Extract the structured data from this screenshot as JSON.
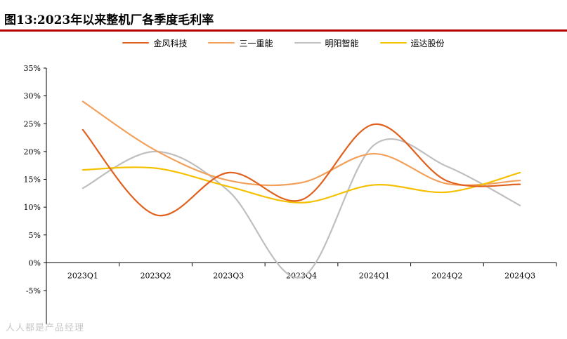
{
  "title": "图13:2023年以来整机厂各季度毛利率",
  "watermark": "人人都是产品经理",
  "chart_data": {
    "type": "line",
    "categories": [
      "2023Q1",
      "2023Q2",
      "2023Q3",
      "2023Q4",
      "2024Q1",
      "2024Q2",
      "2024Q3"
    ],
    "yticks": [
      "-5%",
      "0%",
      "5%",
      "10%",
      "15%",
      "20%",
      "25%",
      "30%",
      "35%"
    ],
    "ylim": [
      -5,
      35
    ],
    "series": [
      {
        "name": "金风科技",
        "color": "#E0611E",
        "values": [
          23.9,
          8.6,
          16.2,
          11.3,
          24.9,
          14.7,
          14.1
        ]
      },
      {
        "name": "三一重能",
        "color": "#F2A05A",
        "values": [
          29.0,
          20.2,
          14.8,
          14.4,
          19.6,
          14.2,
          14.8
        ]
      },
      {
        "name": "明阳智能",
        "color": "#BFBFBF",
        "values": [
          13.4,
          20.0,
          12.9,
          -2.6,
          21.2,
          17.3,
          10.3
        ]
      },
      {
        "name": "运达股份",
        "color": "#F5C000",
        "values": [
          16.7,
          17.0,
          13.7,
          10.8,
          14.0,
          12.7,
          16.2
        ]
      }
    ],
    "legend_position": "top",
    "grid": false
  }
}
